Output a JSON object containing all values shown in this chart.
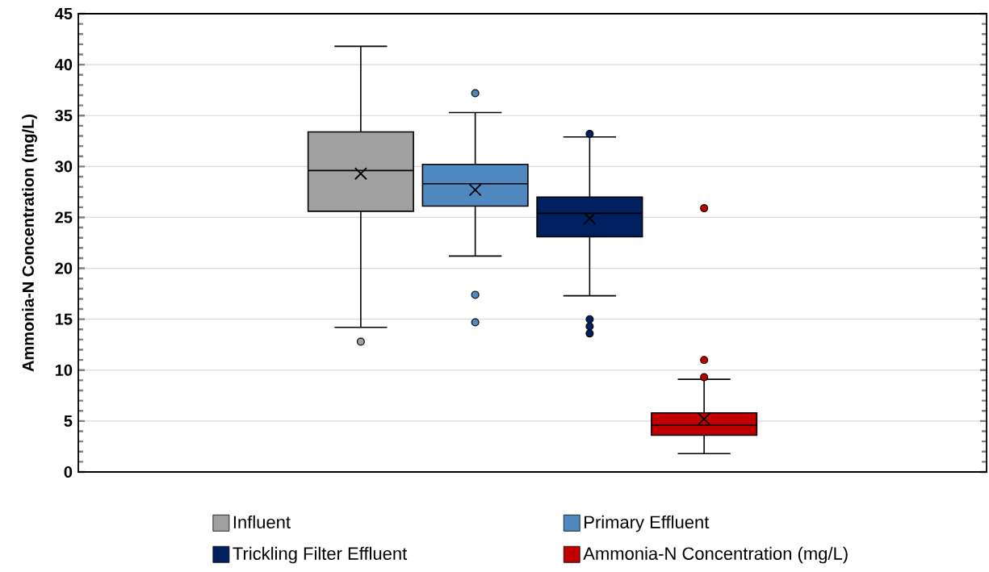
{
  "chart_data": {
    "type": "box",
    "ylabel": "Ammonia-N Concentration (mg/L)",
    "categories": [
      null
    ],
    "ylim": [
      0,
      45
    ],
    "yticks": [
      0,
      5,
      10,
      15,
      20,
      25,
      30,
      35,
      40,
      45
    ],
    "grid": "y",
    "legend": "bottom",
    "series": [
      {
        "name": "Influent",
        "color": "#a0a0a0",
        "boxes": [
          {
            "low": 14.2,
            "q1": 25.6,
            "median": 29.6,
            "q3": 33.4,
            "high": 41.8,
            "mean": 29.3,
            "outliers": [
              12.8
            ]
          }
        ]
      },
      {
        "name": "Primary Effluent",
        "color": "#4f88bf",
        "boxes": [
          {
            "low": 21.2,
            "q1": 26.1,
            "median": 28.3,
            "q3": 30.2,
            "high": 35.3,
            "mean": 27.7,
            "outliers": [
              37.2,
              17.4,
              14.7
            ]
          }
        ]
      },
      {
        "name": "Trickling Filter Effluent",
        "color": "#002060",
        "boxes": [
          {
            "low": 17.3,
            "q1": 23.1,
            "median": 25.4,
            "q3": 27.0,
            "high": 32.9,
            "mean": 24.9,
            "outliers": [
              33.2,
              15.0,
              14.3,
              13.6
            ]
          }
        ]
      },
      {
        "name": "Ammonia-N Concentration (mg/L)",
        "color": "#c00000",
        "boxes": [
          {
            "low": 1.8,
            "q1": 3.6,
            "median": 4.6,
            "q3": 5.8,
            "high": 9.1,
            "mean": 5.2,
            "outliers": [
              25.9,
              11.0,
              9.3
            ]
          }
        ]
      }
    ]
  }
}
